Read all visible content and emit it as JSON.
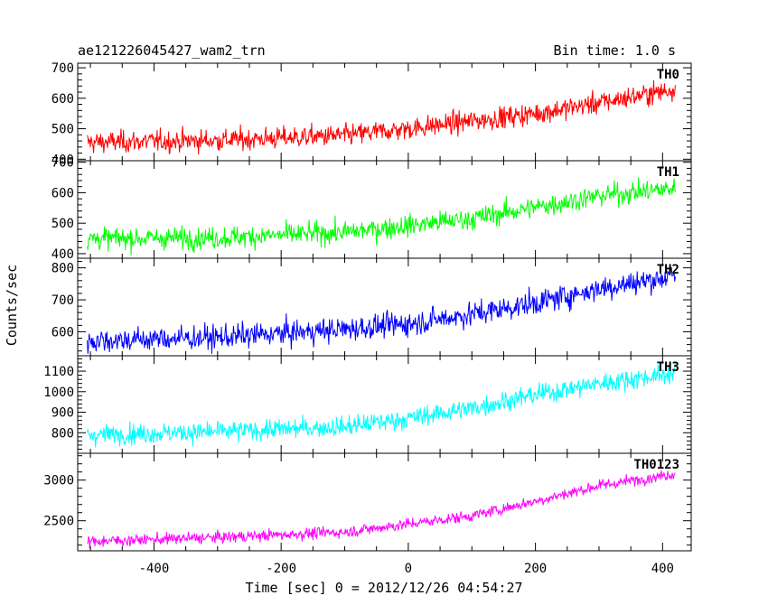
{
  "chart_data": {
    "type": "line",
    "title": "ae121226045427_wam2_trn",
    "subtitle": "Bin time: 1.0 s",
    "xlabel": "Time [sec] 0 = 2012/12/26 04:54:27",
    "ylabel": "Counts/sec",
    "xlim": [
      -520,
      445
    ],
    "xticks": [
      -400,
      -200,
      0,
      200,
      400
    ],
    "x_data_range": [
      -505,
      420
    ],
    "bin_time_s": 1.0,
    "grid": false,
    "panels": [
      {
        "name": "TH0",
        "color": "#ff0000",
        "ylim": [
          395,
          715
        ],
        "yticks": [
          400,
          500,
          600,
          700
        ],
        "trend": [
          [
            -505,
            455
          ],
          [
            -300,
            462
          ],
          [
            -100,
            478
          ],
          [
            0,
            500
          ],
          [
            100,
            525
          ],
          [
            200,
            550
          ],
          [
            300,
            585
          ],
          [
            420,
            630
          ]
        ],
        "noise": 28
      },
      {
        "name": "TH1",
        "color": "#00ff00",
        "ylim": [
          385,
          705
        ],
        "yticks": [
          400,
          500,
          600,
          700
        ],
        "trend": [
          [
            -505,
            450
          ],
          [
            -300,
            452
          ],
          [
            -100,
            470
          ],
          [
            0,
            492
          ],
          [
            100,
            515
          ],
          [
            200,
            552
          ],
          [
            300,
            590
          ],
          [
            420,
            615
          ]
        ],
        "noise": 28
      },
      {
        "name": "TH2",
        "color": "#0000ff",
        "ylim": [
          525,
          830
        ],
        "yticks": [
          600,
          700,
          800
        ],
        "trend": [
          [
            -505,
            572
          ],
          [
            -300,
            582
          ],
          [
            -100,
            608
          ],
          [
            0,
            625
          ],
          [
            100,
            655
          ],
          [
            200,
            690
          ],
          [
            300,
            735
          ],
          [
            420,
            775
          ]
        ],
        "noise": 30
      },
      {
        "name": "TH3",
        "color": "#00ffff",
        "ylim": [
          700,
          1175
        ],
        "yticks": [
          800,
          900,
          1000,
          1100
        ],
        "trend": [
          [
            -505,
            790
          ],
          [
            -300,
            805
          ],
          [
            -100,
            830
          ],
          [
            0,
            870
          ],
          [
            100,
            920
          ],
          [
            200,
            985
          ],
          [
            300,
            1040
          ],
          [
            420,
            1090
          ]
        ],
        "noise": 38
      },
      {
        "name": "TH0123",
        "color": "#ff00ff",
        "ylim": [
          2130,
          3330
        ],
        "yticks": [
          2500,
          3000
        ],
        "trend": [
          [
            -505,
            2245
          ],
          [
            -300,
            2295
          ],
          [
            -100,
            2360
          ],
          [
            0,
            2460
          ],
          [
            100,
            2560
          ],
          [
            200,
            2740
          ],
          [
            300,
            2930
          ],
          [
            420,
            3080
          ]
        ],
        "noise": 55
      }
    ]
  }
}
